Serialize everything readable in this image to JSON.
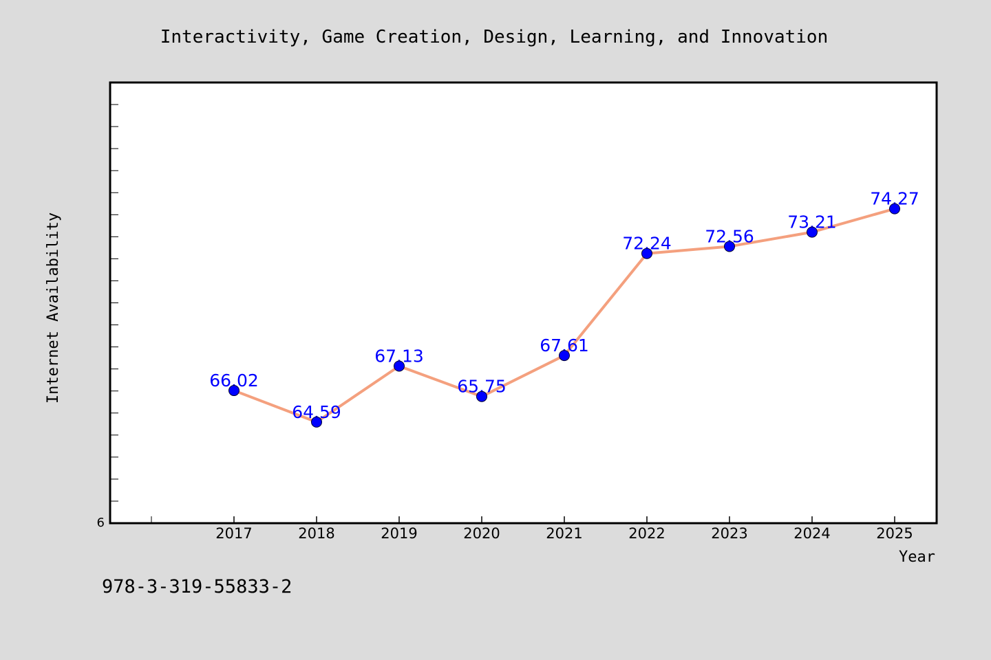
{
  "chart_data": {
    "type": "line",
    "title": "Interactivity, Game Creation, Design, Learning, and Innovation",
    "xlabel": "Year",
    "ylabel": "Internet Availability",
    "categories": [
      "2017",
      "2018",
      "2019",
      "2020",
      "2021",
      "2022",
      "2023",
      "2024",
      "2025"
    ],
    "series": [
      {
        "values": [
          66.02,
          64.59,
          67.13,
          65.75,
          67.61,
          72.24,
          72.56,
          73.21,
          74.27
        ],
        "labels": [
          "66.02",
          "64.59",
          "67.13",
          "65.75",
          "67.61",
          "72.24",
          "72.56",
          "73.21",
          "74.27"
        ]
      }
    ],
    "ylim": [
      60,
      80
    ],
    "y_tick_labels": [
      "6"
    ],
    "line_color": "#f4a07e",
    "marker_color": "#0000ff",
    "label_color": "#0000ff",
    "grid": false,
    "legend": "none"
  },
  "footer": {
    "isbn": "978-3-319-55833-2"
  },
  "colors": {
    "background": "#dcdcdc",
    "plot_background": "#ffffff"
  }
}
